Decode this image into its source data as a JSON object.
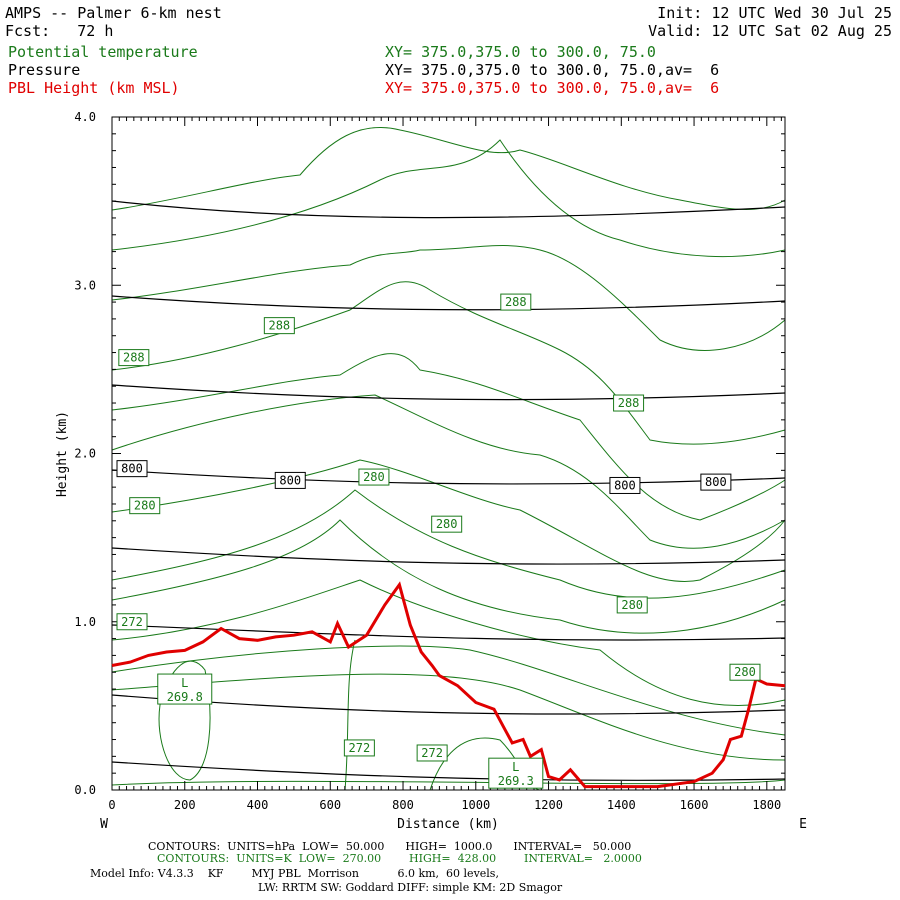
{
  "header": {
    "title": "AMPS -- Palmer 6-km nest",
    "fcst": "Fcst:   72 h",
    "init": "Init: 12 UTC Wed 30 Jul 25",
    "valid": "Valid: 12 UTC Sat 02 Aug 25",
    "field1": "Potential temperature",
    "field2": "Pressure",
    "field3": "PBL Height (km MSL)",
    "xy1": "XY= 375.0,375.0 to 300.0, 75.0",
    "xy2": "XY= 375.0,375.0 to 300.0, 75.0,av=  6",
    "xy3": "XY= 375.0,375.0 to 300.0, 75.0,av=  6"
  },
  "colors": {
    "theta": "#1a7a1a",
    "pbl": "#e00000",
    "pressure": "#000000"
  },
  "footer": {
    "line1": "CONTOURS:  UNITS=hPa  LOW=  50.000      HIGH=  1000.0      INTERVAL=   50.000",
    "line2": "CONTOURS:  UNITS=K  LOW=  270.00        HIGH=  428.00        INTERVAL=   2.0000",
    "line3": "Model Info: V4.3.3    KF        MYJ PBL  Morrison           6.0 km,  60 levels,",
    "line4": "LW: RRTM SW: Goddard DIFF: simple KM: 2D Smagor"
  },
  "chart_data": {
    "type": "line",
    "xlabel": "Distance (km)",
    "ylabel": "Height (km)",
    "xlim": [
      0,
      1850
    ],
    "ylim": [
      0,
      4.0
    ],
    "x_ticks": [
      0,
      200,
      400,
      600,
      800,
      1000,
      1200,
      1400,
      1600,
      1800
    ],
    "y_ticks": [
      "0.0",
      "1.0",
      "2.0",
      "3.0",
      "4.0"
    ],
    "y_tick_values": [
      0,
      1,
      2,
      3,
      4
    ],
    "left_label": "W",
    "right_label": "E",
    "pbl_height_km": {
      "x": [
        0,
        50,
        100,
        150,
        200,
        250,
        300,
        350,
        400,
        450,
        500,
        550,
        600,
        620,
        650,
        700,
        750,
        790,
        820,
        850,
        880,
        900,
        950,
        1000,
        1050,
        1080,
        1100,
        1130,
        1150,
        1180,
        1200,
        1230,
        1260,
        1300,
        1400,
        1500,
        1600,
        1650,
        1680,
        1700,
        1730,
        1750,
        1770,
        1800,
        1850
      ],
      "values": [
        0.74,
        0.76,
        0.8,
        0.82,
        0.83,
        0.88,
        0.96,
        0.9,
        0.89,
        0.91,
        0.92,
        0.94,
        0.88,
        0.99,
        0.85,
        0.92,
        1.1,
        1.22,
        0.98,
        0.82,
        0.74,
        0.68,
        0.62,
        0.52,
        0.48,
        0.36,
        0.28,
        0.3,
        0.2,
        0.24,
        0.08,
        0.06,
        0.12,
        0.02,
        0.02,
        0.02,
        0.05,
        0.1,
        0.18,
        0.3,
        0.32,
        0.48,
        0.66,
        0.63,
        0.62
      ]
    },
    "pressure_contour_labels": [
      {
        "x": 55,
        "y": 1.91,
        "text": "800"
      },
      {
        "x": 490,
        "y": 1.84,
        "text": "800"
      },
      {
        "x": 1410,
        "y": 1.81,
        "text": "800"
      },
      {
        "x": 1660,
        "y": 1.83,
        "text": "800"
      }
    ],
    "theta_contour_labels": [
      {
        "x": 60,
        "y": 2.57,
        "text": "288"
      },
      {
        "x": 460,
        "y": 2.76,
        "text": "288"
      },
      {
        "x": 1110,
        "y": 2.9,
        "text": "288"
      },
      {
        "x": 1420,
        "y": 2.3,
        "text": "288"
      },
      {
        "x": 90,
        "y": 1.69,
        "text": "280"
      },
      {
        "x": 720,
        "y": 1.86,
        "text": "280"
      },
      {
        "x": 920,
        "y": 1.58,
        "text": "280"
      },
      {
        "x": 1430,
        "y": 1.1,
        "text": "280"
      },
      {
        "x": 1740,
        "y": 0.7,
        "text": "280"
      },
      {
        "x": 55,
        "y": 1.0,
        "text": "272"
      },
      {
        "x": 680,
        "y": 0.25,
        "text": "272"
      },
      {
        "x": 880,
        "y": 0.22,
        "text": "272"
      },
      {
        "x": 200,
        "y": 0.6,
        "text": "L\n269.8"
      },
      {
        "x": 1110,
        "y": 0.1,
        "text": "L\n269.3"
      }
    ]
  }
}
